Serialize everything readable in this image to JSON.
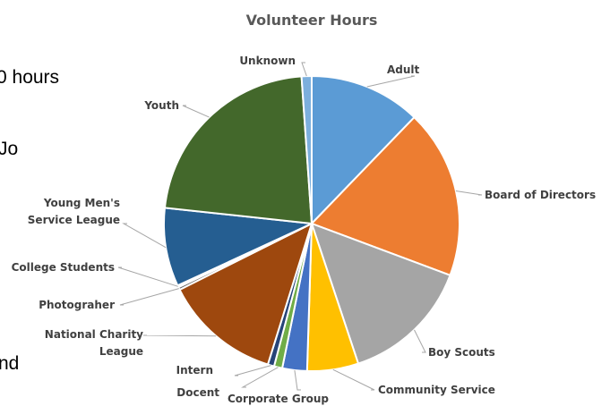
{
  "background_text": {
    "hours": "0 hours",
    "jo": "Jo",
    "nd": "nd"
  },
  "chart_data": {
    "type": "pie",
    "title": "Volunteer Hours",
    "categories": [
      "Adult",
      "Board of Directors",
      "Boy Scouts",
      "Community Service",
      "Corporate Group",
      "Docent",
      "Intern",
      "National Charity League",
      "Photograher",
      "College Students",
      "Young Men's Service League",
      "Youth",
      "Unknown"
    ],
    "values": [
      12.2,
      18.5,
      14.2,
      5.6,
      2.7,
      0.9,
      0.7,
      12.8,
      0.3,
      0.2,
      8.6,
      22.2,
      1.1
    ],
    "colors": [
      "#5b9bd5",
      "#ed7d31",
      "#a5a5a5",
      "#ffc000",
      "#4472c4",
      "#70ad47",
      "#264478",
      "#9e480e",
      "#636363",
      "#997300",
      "#255e91",
      "#43682b",
      "#7cafdd"
    ],
    "labels": [
      {
        "text": [
          "Adult"
        ]
      },
      {
        "text": [
          "Board of Directors"
        ]
      },
      {
        "text": [
          "Boy Scouts"
        ]
      },
      {
        "text": [
          "Community Service"
        ]
      },
      {
        "text": [
          "Corporate Group"
        ]
      },
      {
        "text": [
          "Docent"
        ]
      },
      {
        "text": [
          "Intern"
        ]
      },
      {
        "text": [
          "National Charity",
          "League"
        ]
      },
      {
        "text": [
          "Photograher"
        ]
      },
      {
        "text": [
          "College Students"
        ]
      },
      {
        "text": [
          "Young Men's",
          "Service League"
        ]
      },
      {
        "text": [
          "Youth"
        ]
      },
      {
        "text": [
          "Unknown"
        ]
      }
    ],
    "start_angle_deg": 0,
    "direction": "clockwise",
    "legend": "none"
  }
}
